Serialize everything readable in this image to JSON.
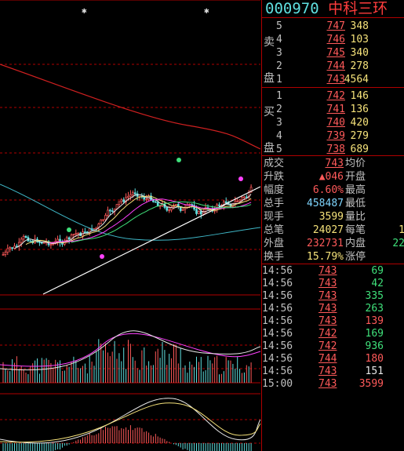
{
  "header": {
    "code": "000970",
    "name": "中科三环"
  },
  "sell_side_label": [
    "卖",
    "盘"
  ],
  "buy_side_label": [
    "买",
    "盘"
  ],
  "sell_orders": [
    {
      "level": "5",
      "price": "747",
      "volume": "348"
    },
    {
      "level": "4",
      "price": "746",
      "volume": "103"
    },
    {
      "level": "3",
      "price": "745",
      "volume": "340"
    },
    {
      "level": "2",
      "price": "744",
      "volume": "278"
    },
    {
      "level": "1",
      "price": "743",
      "volume": "4564"
    }
  ],
  "buy_orders": [
    {
      "level": "1",
      "price": "742",
      "volume": "146"
    },
    {
      "level": "2",
      "price": "741",
      "volume": "136"
    },
    {
      "level": "3",
      "price": "740",
      "volume": "420"
    },
    {
      "level": "4",
      "price": "739",
      "volume": "279"
    },
    {
      "level": "5",
      "price": "738",
      "volume": "689"
    }
  ],
  "stats": [
    {
      "label": "成交",
      "value": "743",
      "label2": "均价",
      "value2": ""
    },
    {
      "label": "升跌",
      "value": "▲046",
      "label2": "开盘",
      "value2": ""
    },
    {
      "label": "幅度",
      "value": "6.60%",
      "label2": "最高",
      "value2": ""
    },
    {
      "label": "总手",
      "value": "458487",
      "label2": "最低",
      "value2": ""
    },
    {
      "label": "现手",
      "value": "3599",
      "label2": "量比",
      "value2": ""
    },
    {
      "label": "总笔",
      "value": "24027",
      "label2": "每笔",
      "value2": "1"
    },
    {
      "label": "外盘",
      "value": "232731",
      "label2": "内盘",
      "value2": "22"
    },
    {
      "label": "换手",
      "value": "15.79%",
      "label2": "涨停",
      "value2": ""
    }
  ],
  "stat_colors": [
    "#ff5a5a",
    "#ff5a5a",
    "#ff5a5a",
    "#7fd6ff",
    "#f5e27a",
    "#f5e27a",
    "#ff5a5a",
    "#f5e27a"
  ],
  "stat2_colors": [
    "#c0c0c0",
    "#c0c0c0",
    "#c0c0c0",
    "#c0c0c0",
    "#c0c0c0",
    "#f5e27a",
    "#3fe07a",
    "#c0c0c0"
  ],
  "ticks": [
    {
      "time": "14:56",
      "price": "743",
      "volume": "69",
      "color": "#3fe07a"
    },
    {
      "time": "14:56",
      "price": "743",
      "volume": "42",
      "color": "#3fe07a"
    },
    {
      "time": "14:56",
      "price": "743",
      "volume": "335",
      "color": "#3fe07a"
    },
    {
      "time": "14:56",
      "price": "743",
      "volume": "263",
      "color": "#3fe07a"
    },
    {
      "time": "14:56",
      "price": "743",
      "volume": "139",
      "color": "#ff5a5a"
    },
    {
      "time": "14:56",
      "price": "742",
      "volume": "169",
      "color": "#3fe07a"
    },
    {
      "time": "14:56",
      "price": "742",
      "volume": "936",
      "color": "#3fe07a"
    },
    {
      "time": "14:56",
      "price": "744",
      "volume": "180",
      "color": "#ff5a5a"
    },
    {
      "time": "14:56",
      "price": "743",
      "volume": "151",
      "color": "#e8e8e8"
    },
    {
      "time": "15:00",
      "price": "743",
      "volume": "3599",
      "color": "#ff5a5a"
    }
  ],
  "colors": {
    "up": "#ff5a5a",
    "down": "#5fe0e0",
    "border": "#b00000",
    "ma_red": "#d02020",
    "ma_cyan": "#3fb8c8",
    "trend": "#ffffff"
  }
}
